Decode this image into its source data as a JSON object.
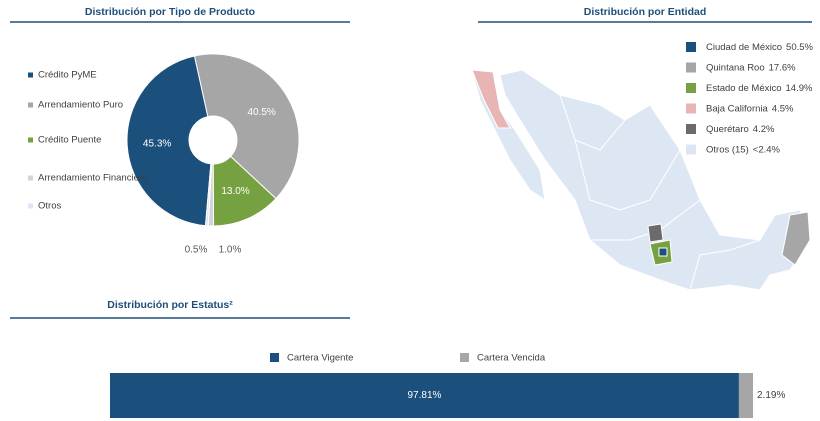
{
  "chart_data": [
    {
      "type": "pie",
      "title": "Distribución por Tipo de Producto",
      "categories": [
        "Crédito PyME",
        "Arrendamiento Puro",
        "Crédito Puente",
        "Arrendamiento Financiero",
        "Otros"
      ],
      "values": [
        45.3,
        40.5,
        13.0,
        1.0,
        0.5
      ],
      "value_labels": [
        "45.3%",
        "40.5%",
        "13.0%",
        "1.0%",
        "0.5%"
      ],
      "colors": [
        "#1b4f7c",
        "#a6a6a6",
        "#76a140",
        "#d4d4d4",
        "#dde7f3"
      ]
    },
    {
      "type": "map",
      "title": "Distribución por Entidad",
      "categories": [
        "Ciudad de México",
        "Quintana Roo",
        "Estado de México",
        "Baja California",
        "Querétaro",
        "Otros (15)"
      ],
      "values": [
        50.5,
        17.6,
        14.9,
        4.5,
        4.2,
        2.4
      ],
      "value_labels": [
        "50.5%",
        "17.6%",
        "14.9%",
        "4.5%",
        "4.2%",
        "<2.4%"
      ],
      "colors": [
        "#1b4f7c",
        "#a6a6a6",
        "#76a140",
        "#e8b4b4",
        "#6b6b6b",
        "#dde7f3"
      ]
    },
    {
      "type": "bar",
      "stacked": true,
      "title": "Distribución por Estatus²",
      "xlim": [
        0,
        100
      ],
      "series": [
        {
          "name": "Cartera Vigente",
          "color": "#1b4f7c",
          "values": [
            97.81
          ],
          "value_labels": [
            "97.81%"
          ]
        },
        {
          "name": "Cartera Vencida",
          "color": "#a6a6a6",
          "values": [
            2.19
          ],
          "value_labels": [
            "2.19%"
          ]
        }
      ]
    }
  ]
}
